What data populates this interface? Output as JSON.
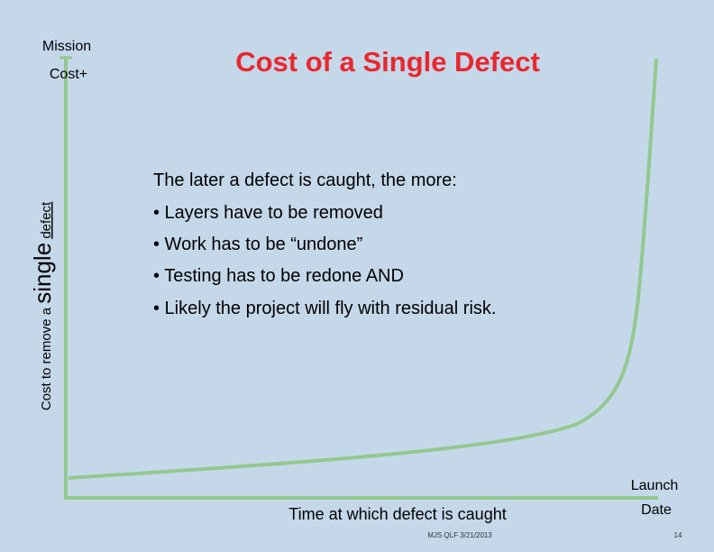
{
  "title": "Cost of a Single Defect",
  "y_axis": {
    "top_label_line1": "Mission",
    "top_label_line2": "Cost+",
    "label_parts": [
      "Cost to remove a ",
      "single",
      " ",
      "defect"
    ]
  },
  "x_axis": {
    "label": "Time at which defect is caught",
    "end_label_line1": "Launch",
    "end_label_line2": "Date"
  },
  "body": {
    "intro": "The later a defect is caught, the more:",
    "bullets": [
      "• Layers have to be removed",
      "• Work has to be “undone”",
      "• Testing has to be redone AND",
      "• Likely the project will fly with residual risk."
    ]
  },
  "footer": {
    "note": "MJS QLF 3/21/2013",
    "page": "14"
  }
}
